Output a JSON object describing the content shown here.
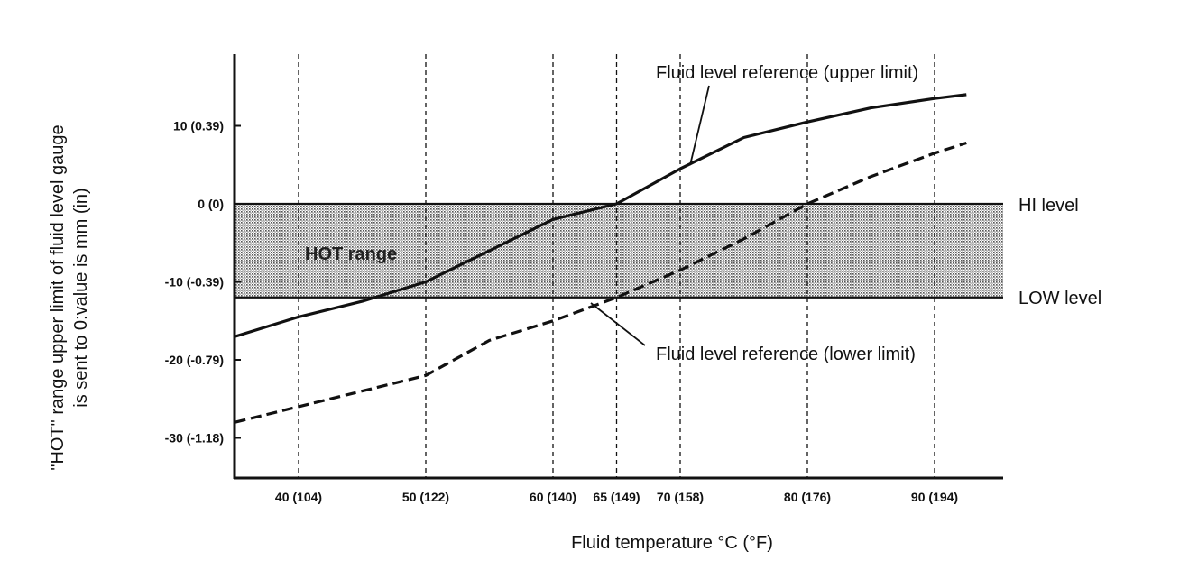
{
  "chart_data": {
    "type": "line",
    "title": "",
    "xlabel": "Fluid temperature °C (°F)",
    "ylabel_line1": "\"HOT\" range upper limit of fluid level gauge",
    "ylabel_line2": "is sent to 0:value is mm (in)",
    "xlim": [
      35,
      97
    ],
    "ylim": [
      -34,
      19
    ],
    "x_ticks": [
      {
        "value": 40,
        "label": "40 (104)"
      },
      {
        "value": 50,
        "label": "50 (122)"
      },
      {
        "value": 60,
        "label": "60 (140)"
      },
      {
        "value": 65,
        "label": "65 (149)"
      },
      {
        "value": 70,
        "label": "70 (158)"
      },
      {
        "value": 80,
        "label": "80 (176)"
      },
      {
        "value": 90,
        "label": "90 (194)"
      }
    ],
    "y_ticks": [
      {
        "value": 10,
        "label": "10 (0.39)"
      },
      {
        "value": 0,
        "label": "0 (0)"
      },
      {
        "value": -10,
        "label": "-10 (-0.39)"
      },
      {
        "value": -20,
        "label": "-20 (-0.79)"
      },
      {
        "value": -30,
        "label": "-30 (-1.18)"
      }
    ],
    "hot_range": {
      "label": "HOT range",
      "y_top": 0,
      "y_bottom": -12
    },
    "reference_lines": [
      {
        "label": "HI level",
        "y": 0
      },
      {
        "label": "LOW level",
        "y": -12
      }
    ],
    "series": [
      {
        "name": "Fluid level reference (upper limit)",
        "style": "solid",
        "x": [
          35,
          40,
          45,
          50,
          55,
          60,
          65,
          70,
          75,
          80,
          85,
          90,
          92.5
        ],
        "y": [
          -17,
          -14.5,
          -12.5,
          -10,
          -6,
          -2,
          0,
          4.5,
          8.5,
          10.5,
          12.3,
          13.5,
          14
        ]
      },
      {
        "name": "Fluid level reference (lower limit)",
        "style": "dashed",
        "x": [
          35,
          40,
          45,
          50,
          55,
          60,
          65,
          70,
          75,
          80,
          85,
          90,
          92.5
        ],
        "y": [
          -28,
          -26,
          -24,
          -22,
          -17.5,
          -15,
          -12,
          -8.5,
          -4.5,
          0,
          3.5,
          6.5,
          7.8
        ]
      }
    ]
  }
}
